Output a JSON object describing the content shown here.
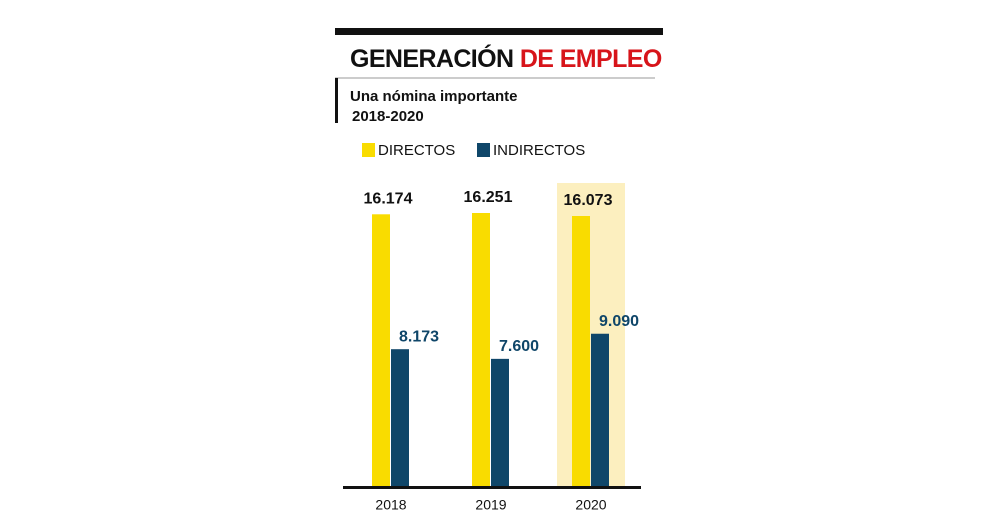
{
  "chart_data": {
    "type": "bar",
    "title": "GENERACIÓN",
    "title_highlight": "DE EMPLEO",
    "title_highlight_color": "#d7141a",
    "subtitle": [
      "Una nómina importante",
      "2018-2020"
    ],
    "categories": [
      "2018",
      "2019",
      "2020"
    ],
    "series": [
      {
        "name": "DIRECTOS",
        "color": "#f9dc00",
        "values": [
          16174,
          16251,
          16073
        ],
        "value_labels": [
          "16.174",
          "16.251",
          "16.073"
        ],
        "label_color": "#111111"
      },
      {
        "name": "INDIRECTOS",
        "color": "#0f4669",
        "values": [
          8173,
          7600,
          9090
        ],
        "value_labels": [
          "8.173",
          "7.600",
          "9.090"
        ],
        "label_color": "#0f4669"
      }
    ],
    "highlight_category": 2,
    "highlight_color": "#fcefbf"
  }
}
